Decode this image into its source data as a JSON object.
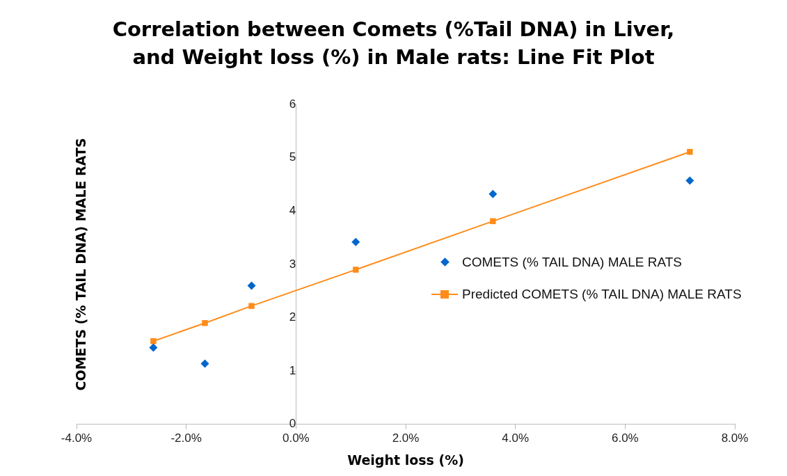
{
  "chart_data": {
    "type": "scatter",
    "title": "Correlation between Comets (%Tail DNA) in Liver, and Weight loss (%) in Male rats:  Line Fit  Plot",
    "xlabel": "Weight loss (%)",
    "ylabel": "COMETS (% TAIL DNA) MALE RATS",
    "xlim": [
      -4,
      8
    ],
    "xticks": [
      {
        "value": -4,
        "label": "-4.0%"
      },
      {
        "value": -2,
        "label": "-2.0%"
      },
      {
        "value": 0,
        "label": "0.0%"
      },
      {
        "value": 2,
        "label": "2.0%"
      },
      {
        "value": 4,
        "label": "4.0%"
      },
      {
        "value": 6,
        "label": "6.0%"
      },
      {
        "value": 8,
        "label": "8.0%"
      }
    ],
    "ylim": [
      0,
      6
    ],
    "yticks": [
      0,
      1,
      2,
      3,
      4,
      5,
      6
    ],
    "grid": false,
    "legend": "right",
    "series": [
      {
        "name": "COMETS (% TAIL DNA) MALE RATS",
        "type": "scatter",
        "marker": "diamond",
        "color": "#0066cc",
        "x": [
          -2.6,
          -1.66,
          -0.81,
          1.09,
          3.59,
          7.18
        ],
        "values": [
          1.44,
          1.14,
          2.6,
          3.42,
          4.32,
          4.57
        ]
      },
      {
        "name": "Predicted COMETS (% TAIL DNA) MALE RATS",
        "type": "line",
        "marker": "square",
        "line_style": "solid",
        "color": "#ff8c1a",
        "x": [
          -2.6,
          -1.66,
          -0.81,
          1.09,
          3.59,
          7.18
        ],
        "values": [
          1.56,
          1.9,
          2.22,
          2.9,
          3.81,
          5.11
        ]
      }
    ]
  }
}
